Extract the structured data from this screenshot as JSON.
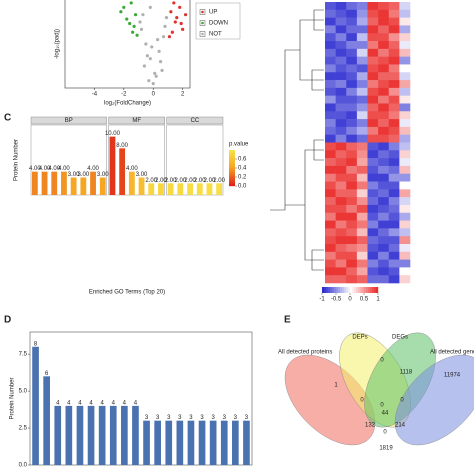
{
  "chart_data": [
    {
      "type": "scatter",
      "xlabel": "log₂(FoldChange)",
      "ylabel": "-log₁₀(padj)",
      "xlim": [
        -6,
        2.5
      ],
      "ylim": [
        0,
        60
      ],
      "xticks": [
        -4,
        -2,
        0,
        2
      ],
      "legend": "right",
      "series": [
        {
          "name": "UP",
          "color": "#e0322c",
          "x": [
            1.2,
            1.5,
            1.8,
            2.0,
            1.3,
            1.6,
            1.1,
            2.2,
            1.4,
            1.9
          ],
          "y": [
            52,
            45,
            55,
            40,
            38,
            48,
            35,
            50,
            58,
            44
          ]
        },
        {
          "name": "DOWN",
          "color": "#3aaa35",
          "x": [
            -1.2,
            -1.6,
            -2.0,
            -1.4,
            -1.8,
            -1.1,
            -2.2,
            -1.5,
            -1.3
          ],
          "y": [
            50,
            44,
            55,
            38,
            47,
            36,
            52,
            58,
            42
          ]
        },
        {
          "name": "NOT",
          "color": "#b0b0b0",
          "x": [
            -0.8,
            -0.5,
            -0.2,
            0.1,
            0.4,
            0.7,
            -0.6,
            -0.3,
            0.2,
            0.5,
            -0.9,
            0.8,
            -0.1,
            0.3,
            -0.4,
            0.6,
            0.0,
            -0.7,
            0.9,
            -0.2
          ],
          "y": [
            40,
            30,
            20,
            10,
            25,
            35,
            15,
            5,
            8,
            18,
            45,
            42,
            28,
            33,
            22,
            12,
            3,
            50,
            48,
            55
          ]
        }
      ]
    },
    {
      "type": "heatmap",
      "panel": "",
      "ylim": [
        -1,
        1
      ],
      "yticks": [
        -1,
        -0.5,
        0,
        0.5,
        1
      ],
      "colors": [
        "#2b2bd0",
        "#ffffff",
        "#e8201e"
      ],
      "matrix": [
        [
          -0.8,
          -0.9,
          -0.7,
          -0.6,
          0.9,
          0.8,
          0.7,
          -0.2
        ],
        [
          -0.7,
          -0.8,
          -0.9,
          -0.5,
          0.8,
          0.9,
          0.6,
          -0.3
        ],
        [
          -0.9,
          -0.7,
          -0.8,
          -0.4,
          0.7,
          0.9,
          0.8,
          0.1
        ],
        [
          -0.6,
          -0.9,
          -0.7,
          -0.7,
          0.9,
          0.7,
          0.9,
          -0.4
        ],
        [
          -0.8,
          -0.6,
          -0.9,
          -0.3,
          0.8,
          0.8,
          0.5,
          0.2
        ],
        [
          -0.9,
          -0.8,
          -0.6,
          -0.6,
          0.6,
          0.9,
          0.7,
          -0.1
        ],
        [
          -0.7,
          -0.9,
          -0.8,
          -0.2,
          0.9,
          0.6,
          0.8,
          0.3
        ],
        [
          -0.8,
          -0.7,
          -0.9,
          -0.5,
          0.7,
          0.8,
          0.9,
          -0.5
        ],
        [
          -0.6,
          -0.8,
          -0.7,
          -0.8,
          0.8,
          0.9,
          0.6,
          0.0
        ],
        [
          -0.9,
          -0.9,
          -0.8,
          -0.4,
          0.9,
          0.7,
          0.7,
          -0.2
        ],
        [
          -0.7,
          -0.6,
          -0.9,
          -0.6,
          0.6,
          0.8,
          0.9,
          0.4
        ],
        [
          -0.8,
          -0.9,
          -0.6,
          -0.3,
          0.8,
          0.9,
          0.5,
          -0.3
        ],
        [
          -0.5,
          -0.8,
          -0.8,
          -0.7,
          0.9,
          0.6,
          0.8,
          0.1
        ],
        [
          -0.9,
          -0.7,
          -0.7,
          -0.5,
          0.7,
          0.9,
          0.7,
          -0.6
        ],
        [
          -0.8,
          -0.8,
          -0.9,
          -0.2,
          0.8,
          0.8,
          0.6,
          0.2
        ],
        [
          -0.6,
          -0.9,
          -0.8,
          -0.6,
          0.9,
          0.7,
          0.9,
          -0.1
        ],
        [
          -0.7,
          -0.8,
          -0.6,
          -0.4,
          0.6,
          0.9,
          0.8,
          0.3
        ],
        [
          -0.9,
          -0.6,
          -0.9,
          -0.7,
          0.8,
          0.8,
          0.7,
          -0.4
        ],
        [
          0.8,
          0.9,
          0.7,
          0.6,
          -0.8,
          -0.9,
          -0.6,
          -0.3
        ],
        [
          0.9,
          0.7,
          0.8,
          0.5,
          -0.9,
          -0.7,
          -0.8,
          0.2
        ],
        [
          0.7,
          0.8,
          0.9,
          0.4,
          -0.7,
          -0.8,
          -0.9,
          -0.1
        ],
        [
          0.9,
          0.9,
          0.6,
          0.7,
          -0.8,
          -0.6,
          -0.7,
          0.3
        ],
        [
          0.6,
          0.8,
          0.8,
          0.3,
          -0.9,
          -0.9,
          -0.5,
          -0.5
        ],
        [
          0.8,
          0.6,
          0.9,
          0.6,
          -0.6,
          -0.8,
          -0.8,
          0.0
        ],
        [
          0.9,
          0.7,
          0.7,
          0.2,
          -0.8,
          -0.7,
          -0.9,
          0.4
        ],
        [
          0.7,
          0.9,
          0.8,
          0.5,
          -0.7,
          -0.9,
          -0.6,
          -0.2
        ],
        [
          0.8,
          0.8,
          0.6,
          0.8,
          -0.9,
          -0.8,
          -0.7,
          0.1
        ],
        [
          0.6,
          0.9,
          0.9,
          0.4,
          -0.8,
          -0.6,
          -0.8,
          -0.4
        ],
        [
          0.9,
          0.6,
          0.8,
          0.6,
          -0.6,
          -0.9,
          -0.9,
          0.2
        ],
        [
          0.7,
          0.8,
          0.7,
          0.3,
          -0.9,
          -0.7,
          -0.5,
          -0.3
        ],
        [
          0.8,
          0.9,
          0.9,
          0.7,
          -0.7,
          -0.8,
          -0.8,
          0.5
        ],
        [
          0.9,
          0.7,
          0.6,
          0.5,
          -0.8,
          -0.9,
          -0.7,
          -0.1
        ],
        [
          0.6,
          0.8,
          0.8,
          0.2,
          -0.9,
          -0.6,
          -0.9,
          0.3
        ],
        [
          0.8,
          0.6,
          0.9,
          0.6,
          -0.6,
          -0.8,
          -0.6,
          -0.6
        ],
        [
          0.9,
          0.9,
          0.7,
          0.4,
          -0.8,
          -0.9,
          -0.8,
          0.0
        ],
        [
          0.7,
          0.7,
          0.8,
          0.7,
          -0.7,
          -0.7,
          -0.9,
          0.2
        ]
      ]
    },
    {
      "type": "bar",
      "panel": "C",
      "ylabel": "Protein Number",
      "xlabel": "Enriched GO Terms (Top 20)",
      "ylim": [
        0,
        12
      ],
      "facets": [
        {
          "name": "BP",
          "count": 8
        },
        {
          "name": "MF",
          "count": 6
        },
        {
          "name": "CC",
          "count": 6
        }
      ],
      "categories": [
        null,
        null,
        null,
        null,
        null,
        null,
        null,
        null,
        null,
        null,
        null,
        null,
        null,
        null,
        null,
        null,
        null,
        null,
        null,
        null
      ],
      "values": [
        4,
        4,
        4,
        4,
        3,
        3,
        4,
        3,
        10,
        8,
        4,
        3,
        2,
        2,
        2,
        2,
        2,
        2,
        2,
        2
      ],
      "value_labels": [
        "4.00",
        "4.00",
        "4.00",
        "4.00",
        "3.00",
        "3.00",
        "4.00",
        "3.00",
        "10.00",
        "8.00",
        "4.00",
        "3.00",
        "2.00",
        "2.00",
        "2.00",
        "2.00",
        "2.00",
        "2.00",
        "2.00",
        "2.00"
      ],
      "pvalues": [
        0.3,
        0.3,
        0.3,
        0.35,
        0.4,
        0.4,
        0.3,
        0.4,
        0.05,
        0.1,
        0.5,
        0.55,
        0.7,
        0.7,
        0.72,
        0.72,
        0.75,
        0.75,
        0.75,
        0.75
      ],
      "colorbar": {
        "title": "p.value",
        "lim": [
          0,
          0.8
        ],
        "ticks": [
          {
            "value": 0,
            "label": "0.0"
          },
          {
            "value": 0.2,
            "label": "0.2"
          },
          {
            "value": 0.4,
            "label": "0.4"
          },
          {
            "value": 0.6,
            "label": "0.6"
          }
        ],
        "colors": [
          "#e0241b",
          "#f5a623",
          "#f7e64a"
        ]
      }
    },
    {
      "type": "bar",
      "panel": "D",
      "ylabel": "Protein Number",
      "ylim": [
        0,
        9
      ],
      "color": "#4a72b0",
      "yticks": [
        {
          "value": 0,
          "label": "0.0"
        },
        {
          "value": 2.5,
          "label": "2.5"
        },
        {
          "value": 5,
          "label": "5.0"
        },
        {
          "value": 7.5,
          "label": "7.5"
        }
      ],
      "categories": [
        null,
        null,
        null,
        null,
        null,
        null,
        null,
        null,
        null,
        null,
        null,
        null,
        null,
        null,
        null,
        null,
        null,
        null,
        null,
        null
      ],
      "values": [
        8,
        6,
        4,
        4,
        4,
        4,
        4,
        4,
        4,
        4,
        3,
        3,
        3,
        3,
        3,
        3,
        3,
        3,
        3,
        3
      ]
    },
    {
      "type": "venn",
      "panel": "E",
      "sets": [
        {
          "name": "All detected proteins",
          "color": "#f06b5e"
        },
        {
          "name": "DEPs",
          "color": "#f4ef6a"
        },
        {
          "name": "DEGs",
          "color": "#5ec16a"
        },
        {
          "name": "All detected genes",
          "color": "#7a8ee0"
        }
      ],
      "counts": [
        0,
        1,
        1118,
        11974,
        0,
        0,
        0,
        44,
        132,
        214,
        1819,
        0
      ]
    }
  ]
}
